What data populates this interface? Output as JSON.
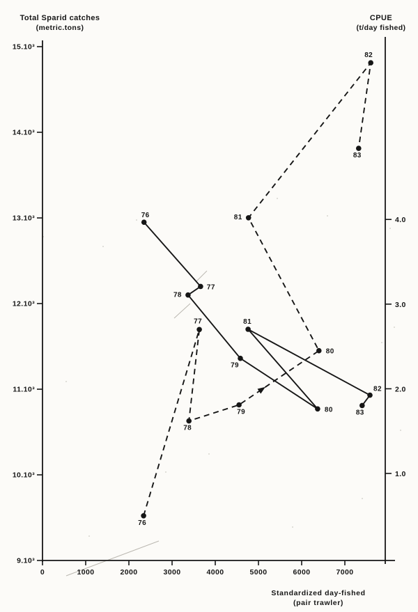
{
  "page": {
    "paper_color": "#fcfbf8",
    "ink_color": "#161616",
    "artifact_color": "#aaa79f"
  },
  "chart_data": {
    "type": "line",
    "description": "Total Sparid catches (solid line, left axis) and CPUE (dashed line, right axis) versus standardized days fished, year points 76-83",
    "grid": "off",
    "legend": "none",
    "x_axis": {
      "label_line1": "Standardized day-fished",
      "label_line2": "(pair trawler)",
      "range": [
        0,
        8150
      ],
      "ticks": [
        {
          "value": 0,
          "label": "0"
        },
        {
          "value": 1000,
          "label": "1000"
        },
        {
          "value": 2000,
          "label": "2000"
        },
        {
          "value": 3000,
          "label": "3000"
        },
        {
          "value": 4000,
          "label": "4000"
        },
        {
          "value": 5000,
          "label": "5000"
        },
        {
          "value": 6000,
          "label": "6000"
        },
        {
          "value": 7000,
          "label": "7000"
        }
      ]
    },
    "left_axis": {
      "title_line1": "Total Sparid catches",
      "title_line2": "(metric.tons)",
      "range": [
        9000,
        15100
      ],
      "ticks": [
        {
          "value": 15000,
          "label": "15.10³"
        },
        {
          "value": 14000,
          "label": "14.10³"
        },
        {
          "value": 13000,
          "label": "13.10³"
        },
        {
          "value": 12000,
          "label": "12.10³"
        },
        {
          "value": 11000,
          "label": "11.10³"
        },
        {
          "value": 10000,
          "label": "10.10³"
        },
        {
          "value": 9000,
          "label": "9.10³"
        }
      ]
    },
    "right_axis": {
      "title_line1": "CPUE",
      "title_line2": "(t/day fished)",
      "range": [
        0,
        6.2
      ],
      "ticks": [
        {
          "value": 4.0,
          "label": "4.0"
        },
        {
          "value": 3.0,
          "label": "3.0"
        },
        {
          "value": 2.0,
          "label": "2.0"
        },
        {
          "value": 1.0,
          "label": "1.0"
        }
      ]
    },
    "series": [
      {
        "name": "total-sparid-catches",
        "axis": "left",
        "line_style": "solid",
        "points": [
          {
            "year": "76",
            "x": 2350,
            "y": 12950,
            "label": {
              "dx": 2,
              "dy": -7,
              "anchor": "middle"
            }
          },
          {
            "year": "77",
            "x": 3660,
            "y": 12200,
            "label": {
              "dx": 9,
              "dy": 4,
              "anchor": "start"
            }
          },
          {
            "year": "78",
            "x": 3370,
            "y": 12100,
            "label": {
              "dx": -9,
              "dy": 3,
              "anchor": "end"
            }
          },
          {
            "year": "79",
            "x": 4580,
            "y": 11360,
            "label": {
              "dx": -2,
              "dy": 13,
              "anchor": "end"
            }
          },
          {
            "year": "80",
            "x": 6370,
            "y": 10770,
            "label": {
              "dx": 10,
              "dy": 4,
              "anchor": "start"
            }
          },
          {
            "year": "81",
            "x": 4760,
            "y": 11700,
            "label": {
              "dx": -1,
              "dy": -8,
              "anchor": "middle"
            }
          },
          {
            "year": "82",
            "x": 7580,
            "y": 10930,
            "label": {
              "dx": 5,
              "dy": -6,
              "anchor": "start"
            }
          },
          {
            "year": "83",
            "x": 7400,
            "y": 10810,
            "label": {
              "dx": -3,
              "dy": 13,
              "anchor": "middle"
            }
          }
        ]
      },
      {
        "name": "cpue",
        "axis": "right",
        "line_style": "dashed",
        "direction_arrow": {
          "from_year": "79",
          "to_year": "80",
          "t": 0.33
        },
        "points": [
          {
            "year": "76",
            "x": 2340,
            "y": 0.5,
            "label": {
              "dx": -2,
              "dy": 13,
              "anchor": "middle"
            }
          },
          {
            "year": "77",
            "x": 3630,
            "y": 2.7,
            "label": {
              "dx": -2,
              "dy": -9,
              "anchor": "middle"
            }
          },
          {
            "year": "78",
            "x": 3390,
            "y": 1.62,
            "label": {
              "dx": -2,
              "dy": 13,
              "anchor": "middle"
            }
          },
          {
            "year": "79",
            "x": 4550,
            "y": 1.81,
            "label": {
              "dx": 3,
              "dy": 13,
              "anchor": "middle"
            }
          },
          {
            "year": "80",
            "x": 6400,
            "y": 2.45,
            "label": {
              "dx": 10,
              "dy": 4,
              "anchor": "start"
            }
          },
          {
            "year": "81",
            "x": 4770,
            "y": 4.02,
            "label": {
              "dx": -9,
              "dy": 2,
              "anchor": "end"
            }
          },
          {
            "year": "82",
            "x": 7600,
            "y": 5.85,
            "label": {
              "dx": -3,
              "dy": -8,
              "anchor": "middle"
            }
          },
          {
            "year": "83",
            "x": 7320,
            "y": 4.84,
            "label": {
              "dx": -2,
              "dy": 13,
              "anchor": "middle"
            }
          }
        ]
      }
    ]
  }
}
